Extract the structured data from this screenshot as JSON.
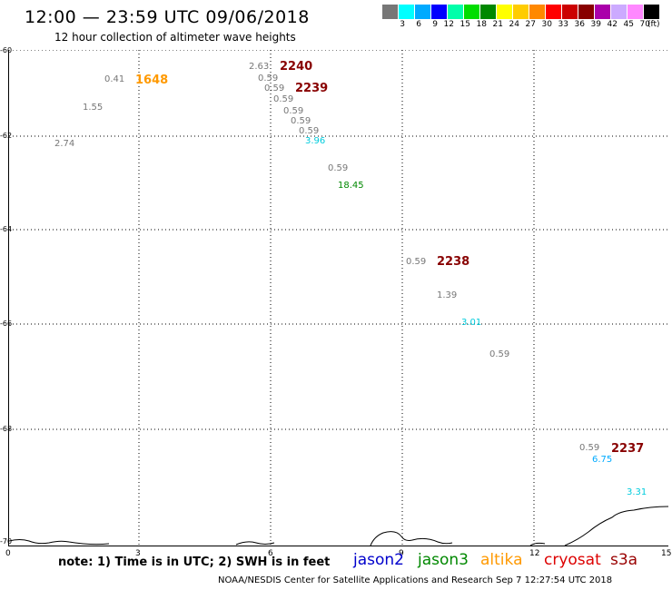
{
  "header": {
    "title": "12:00 — 23:59 UTC 09/06/2018",
    "subtitle": "12 hour collection of altimeter wave heights"
  },
  "legend": {
    "colors": [
      "#777777",
      "#00ffff",
      "#00aaff",
      "#0000ff",
      "#00ffaa",
      "#00dd00",
      "#008800",
      "#ffff00",
      "#ffcc00",
      "#ff8800",
      "#ff0000",
      "#cc0000",
      "#880000",
      "#aa00aa",
      "#ccaaff",
      "#ff88ff",
      "#000000"
    ],
    "labels": [
      "3",
      "6",
      "9",
      "12",
      "15",
      "18",
      "21",
      "24",
      "27",
      "30",
      "33",
      "36",
      "39",
      "42",
      "45",
      "70"
    ],
    "unit": "(ft)"
  },
  "axes": {
    "y_labels": [
      "-60",
      "-62",
      "-64",
      "-66",
      "-68",
      "-70"
    ],
    "x_labels": [
      "0",
      "3",
      "6",
      "9",
      "12",
      "15"
    ]
  },
  "observations": [
    {
      "text": "0.41",
      "color": "#777777"
    },
    {
      "text": "1.55",
      "color": "#777777"
    },
    {
      "text": "2.74",
      "color": "#777777"
    },
    {
      "text": "2.63",
      "color": "#777777"
    },
    {
      "text": "0.59",
      "color": "#777777"
    },
    {
      "text": "0.59",
      "color": "#777777"
    },
    {
      "text": "0.59",
      "color": "#777777"
    },
    {
      "text": "0.59",
      "color": "#777777"
    },
    {
      "text": "0.59",
      "color": "#777777"
    },
    {
      "text": "0.59",
      "color": "#777777"
    },
    {
      "text": "3.96",
      "color": "#00ccdd"
    },
    {
      "text": "0.59",
      "color": "#777777"
    },
    {
      "text": "18.45",
      "color": "#008800"
    },
    {
      "text": "0.59",
      "color": "#777777"
    },
    {
      "text": "1.39",
      "color": "#777777"
    },
    {
      "text": "3.01",
      "color": "#00ccdd"
    },
    {
      "text": "0.59",
      "color": "#777777"
    },
    {
      "text": "0.59",
      "color": "#777777"
    },
    {
      "text": "6.75",
      "color": "#00aaff"
    },
    {
      "text": "3.31",
      "color": "#00ccdd"
    }
  ],
  "time_tags": [
    {
      "text": "1648",
      "color": "#ff9900"
    },
    {
      "text": "2240",
      "color": "#880000"
    },
    {
      "text": "2239",
      "color": "#880000"
    },
    {
      "text": "2238",
      "color": "#880000"
    },
    {
      "text": "2237",
      "color": "#880000"
    }
  ],
  "note": "note: 1) Time is in UTC; 2) SWH is in feet",
  "satellites": [
    {
      "name": "jason2",
      "color": "#0000cc"
    },
    {
      "name": "jason3",
      "color": "#008800"
    },
    {
      "name": "altika",
      "color": "#ff9900"
    },
    {
      "name": "cryosat",
      "color": "#dd0000"
    },
    {
      "name": "s3a",
      "color": "#990000"
    }
  ],
  "footer": "NOAA/NESDIS Center for Satellite Applications and Research    Sep  7 12:27:54 UTC 2018"
}
